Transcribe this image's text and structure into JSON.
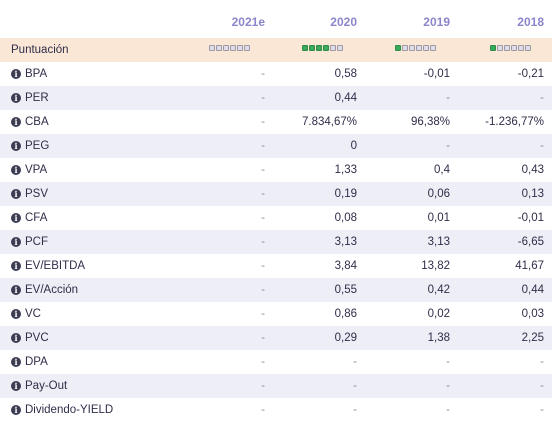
{
  "header": {
    "years": [
      "2021e",
      "2020",
      "2019",
      "2018"
    ]
  },
  "score": {
    "label": "Puntuación",
    "filled": [
      0,
      4,
      1,
      1
    ],
    "total": 6,
    "colors": {
      "filled": "#3aa85a",
      "empty": "#e0dde6"
    }
  },
  "rows": [
    {
      "label": "BPA",
      "values": [
        "-",
        "0,58",
        "-0,01",
        "-0,21"
      ]
    },
    {
      "label": "PER",
      "values": [
        "-",
        "0,44",
        "-",
        "-"
      ]
    },
    {
      "label": "CBA",
      "values": [
        "-",
        "7.834,67%",
        "96,38%",
        "-1.236,77%"
      ]
    },
    {
      "label": "PEG",
      "values": [
        "-",
        "0",
        "-",
        "-"
      ]
    },
    {
      "label": "VPA",
      "values": [
        "-",
        "1,33",
        "0,4",
        "0,43"
      ]
    },
    {
      "label": "PSV",
      "values": [
        "-",
        "0,19",
        "0,06",
        "0,13"
      ]
    },
    {
      "label": "CFA",
      "values": [
        "-",
        "0,08",
        "0,01",
        "-0,01"
      ]
    },
    {
      "label": "PCF",
      "values": [
        "-",
        "3,13",
        "3,13",
        "-6,65"
      ]
    },
    {
      "label": "EV/EBITDA",
      "values": [
        "-",
        "3,84",
        "13,82",
        "41,67"
      ]
    },
    {
      "label": "EV/Acción",
      "values": [
        "-",
        "0,55",
        "0,42",
        "0,44"
      ]
    },
    {
      "label": "VC",
      "values": [
        "-",
        "0,86",
        "0,02",
        "0,03"
      ]
    },
    {
      "label": "PVC",
      "values": [
        "-",
        "0,29",
        "1,38",
        "2,25"
      ]
    },
    {
      "label": "DPA",
      "values": [
        "-",
        "-",
        "-",
        "-"
      ]
    },
    {
      "label": "Pay-Out",
      "values": [
        "-",
        "-",
        "-",
        "-"
      ]
    },
    {
      "label": "Dividendo-YIELD",
      "values": [
        "-",
        "-",
        "-",
        "-"
      ]
    }
  ]
}
